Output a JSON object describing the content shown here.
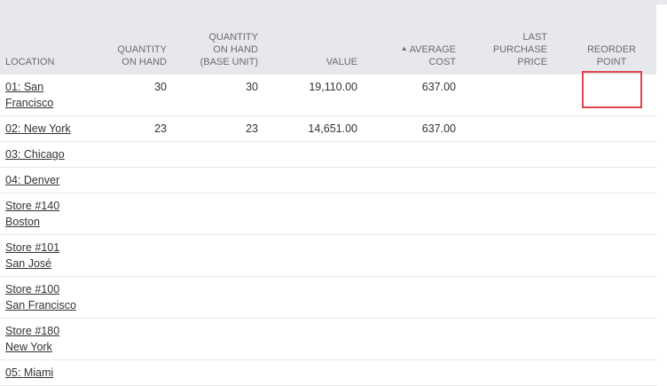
{
  "headers": {
    "location": "LOCATION",
    "qty_on_hand": [
      "QUANTITY",
      "ON HAND"
    ],
    "qty_on_hand_base": [
      "QUANTITY",
      "ON HAND",
      "(BASE UNIT)"
    ],
    "value": "VALUE",
    "average_cost": [
      "AVERAGE",
      "COST"
    ],
    "sort_indicator": "▲",
    "last_purchase_price": [
      "LAST",
      "PURCHASE",
      "PRICE"
    ],
    "reorder_point": [
      "REORDER",
      "POINT"
    ]
  },
  "rows": [
    {
      "location": [
        "01: San",
        "Francisco"
      ],
      "qty_on_hand": "30",
      "qty_on_hand_base": "30",
      "value": "19,110.00",
      "average_cost": "637.00",
      "last_purchase_price": "",
      "reorder_point": ""
    },
    {
      "location": [
        "02: New York"
      ],
      "qty_on_hand": "23",
      "qty_on_hand_base": "23",
      "value": "14,651.00",
      "average_cost": "637.00",
      "last_purchase_price": "",
      "reorder_point": ""
    },
    {
      "location": [
        "03: Chicago"
      ]
    },
    {
      "location": [
        "04: Denver"
      ]
    },
    {
      "location": [
        "Store #140",
        "Boston"
      ]
    },
    {
      "location": [
        "Store #101",
        "San José"
      ]
    },
    {
      "location": [
        "Store #100",
        "San Francisco"
      ]
    },
    {
      "location": [
        "Store #180",
        "New York"
      ]
    },
    {
      "location": [
        "05: Miami"
      ]
    }
  ],
  "colors": {
    "header_bg": "#e6e8ec",
    "highlight_border": "#e4434d"
  }
}
